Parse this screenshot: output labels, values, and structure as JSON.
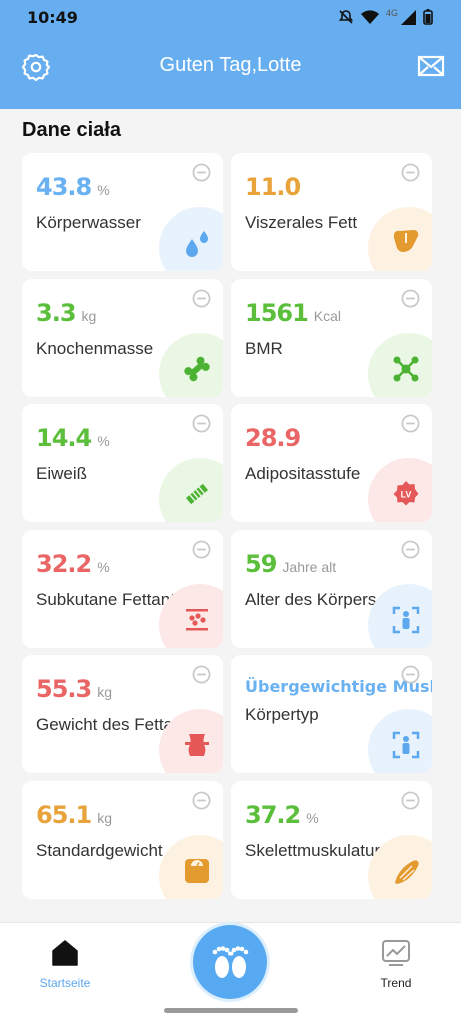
{
  "status": {
    "time": "10:49",
    "network": "4G"
  },
  "header": {
    "title": "Guten Tag,Lotte",
    "icons": [
      "gear-icon",
      "mail-icon"
    ]
  },
  "section_title": "Dane ciała",
  "cards": [
    {
      "value": "43.8",
      "unit": "%",
      "label": "Körperwasser",
      "color": "#6ab1f2",
      "blob": "#e8f2fc",
      "icon": "water-drops-icon"
    },
    {
      "value": "11.0",
      "unit": "",
      "label": "Viszerales Fett",
      "color": "#e8a33a",
      "blob": "#fdf1e2",
      "icon": "organ-icon"
    },
    {
      "value": "3.3",
      "unit": "kg",
      "label": "Knochenmasse",
      "color": "#5bbf3b",
      "blob": "#e9f7e4",
      "icon": "bone-icon"
    },
    {
      "value": "1561",
      "unit": "Kcal",
      "label": "BMR",
      "color": "#5bbf3b",
      "blob": "#e9f7e4",
      "icon": "molecule-icon"
    },
    {
      "value": "14.4",
      "unit": "%",
      "label": "Eiweiß",
      "color": "#5bbf3b",
      "blob": "#e9f7e4",
      "icon": "protein-icon"
    },
    {
      "value": "28.9",
      "unit": "",
      "label": "Adipositasstufe",
      "color": "#ea6666",
      "blob": "#fde8e8",
      "icon": "lv-badge-icon"
    },
    {
      "value": "32.2",
      "unit": "%",
      "label": "Subkutane Fettanteil",
      "color": "#ea6666",
      "blob": "#fde8e8",
      "icon": "subcutaneous-fat-icon"
    },
    {
      "value": "59",
      "unit": "Jahre alt",
      "label": "Alter des Körpers",
      "color": "#5bbf3b",
      "blob": "#e8f2fc",
      "icon": "body-age-icon"
    },
    {
      "value": "55.3",
      "unit": "kg",
      "label": "Gewicht des Fettabbaus",
      "color": "#ea6666",
      "blob": "#fde8e8",
      "icon": "waist-icon"
    },
    {
      "value": "Übergewichtige Muskeltyp",
      "unit": "",
      "label": "Körpertyp",
      "color": "#6ab1f2",
      "blob": "#e8f2fc",
      "icon": "body-type-icon"
    },
    {
      "value": "65.1",
      "unit": "kg",
      "label": "Standardgewicht",
      "color": "#e8a33a",
      "blob": "#fdf1e2",
      "icon": "scale-icon"
    },
    {
      "value": "37.2",
      "unit": "%",
      "label": "Skelettmuskulatur",
      "color": "#5bbf3b",
      "blob": "#fdf1e2",
      "icon": "muscle-icon"
    }
  ],
  "bottom_nav": {
    "home_label": "Startseite",
    "trend_label": "Trend"
  },
  "colors": {
    "accent": "#66aef0",
    "background": "#f4f4f4"
  }
}
